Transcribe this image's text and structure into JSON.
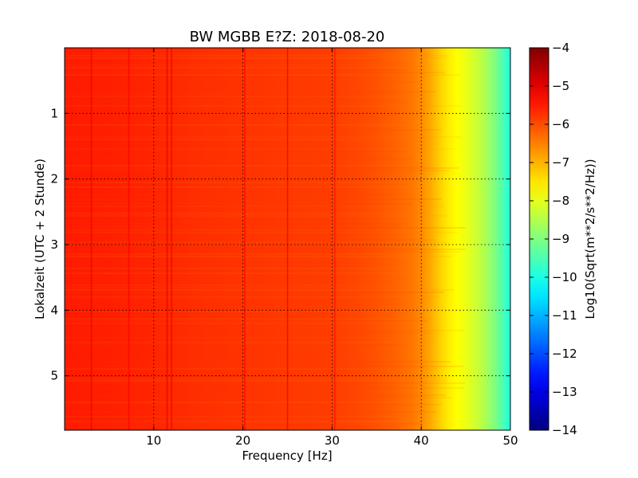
{
  "chart_data": {
    "type": "heatmap",
    "title": "BW MGBB E?Z: 2018-08-20",
    "xlabel": "Frequency [Hz]",
    "ylabel": "Lokalzeit (UTC + 2 Stunde)",
    "xlim": [
      0,
      50
    ],
    "ylim": [
      5.83,
      0
    ],
    "x_ticks": [
      10,
      20,
      30,
      40,
      50
    ],
    "y_ticks": [
      1,
      2,
      3,
      4,
      5
    ],
    "grid": true,
    "colormap": "jet",
    "colorbar": {
      "label": "Log10(Sqrt(m**2/s**2/Hz))",
      "min": -14,
      "max": -4,
      "ticks": [
        -4,
        -5,
        -6,
        -7,
        -8,
        -9,
        -10,
        -11,
        -12,
        -13,
        -14
      ]
    },
    "profile": {
      "frequency_hz": [
        0,
        5,
        10,
        15,
        20,
        25,
        30,
        33,
        35,
        37,
        39,
        40,
        41,
        42,
        43,
        44,
        45,
        46,
        47,
        48,
        49,
        50
      ],
      "value": [
        -5.5,
        -5.55,
        -5.6,
        -5.7,
        -5.75,
        -5.8,
        -5.85,
        -5.95,
        -6.05,
        -6.2,
        -6.4,
        -6.6,
        -6.9,
        -7.25,
        -7.55,
        -7.75,
        -7.95,
        -8.2,
        -8.5,
        -8.9,
        -9.4,
        -10.0
      ]
    },
    "features": [
      {
        "frequency_hz": 11.5,
        "value": -5.0
      },
      {
        "frequency_hz": 12.0,
        "value": -5.1
      },
      {
        "frequency_hz": 20.2,
        "value": -5.3
      },
      {
        "frequency_hz": 25.0,
        "value": -5.1
      },
      {
        "frequency_hz": 30.3,
        "value": -5.4
      },
      {
        "frequency_hz": 3.0,
        "value": -5.0
      },
      {
        "frequency_hz": 7.2,
        "value": -5.2
      }
    ]
  }
}
